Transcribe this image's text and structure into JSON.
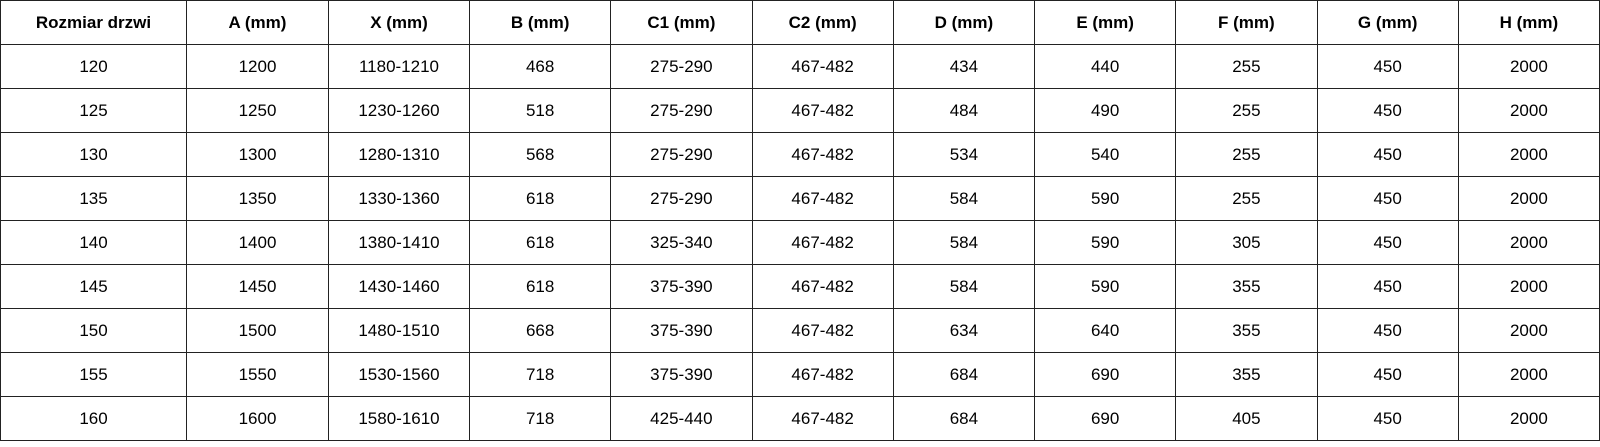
{
  "table": {
    "headers": [
      "Rozmiar drzwi",
      "A (mm)",
      "X (mm)",
      "B (mm)",
      "C1 (mm)",
      "C2 (mm)",
      "D (mm)",
      "E (mm)",
      "F (mm)",
      "G (mm)",
      "H (mm)"
    ],
    "rows": [
      [
        "120",
        "1200",
        "1180-1210",
        "468",
        "275-290",
        "467-482",
        "434",
        "440",
        "255",
        "450",
        "2000"
      ],
      [
        "125",
        "1250",
        "1230-1260",
        "518",
        "275-290",
        "467-482",
        "484",
        "490",
        "255",
        "450",
        "2000"
      ],
      [
        "130",
        "1300",
        "1280-1310",
        "568",
        "275-290",
        "467-482",
        "534",
        "540",
        "255",
        "450",
        "2000"
      ],
      [
        "135",
        "1350",
        "1330-1360",
        "618",
        "275-290",
        "467-482",
        "584",
        "590",
        "255",
        "450",
        "2000"
      ],
      [
        "140",
        "1400",
        "1380-1410",
        "618",
        "325-340",
        "467-482",
        "584",
        "590",
        "305",
        "450",
        "2000"
      ],
      [
        "145",
        "1450",
        "1430-1460",
        "618",
        "375-390",
        "467-482",
        "584",
        "590",
        "355",
        "450",
        "2000"
      ],
      [
        "150",
        "1500",
        "1480-1510",
        "668",
        "375-390",
        "467-482",
        "634",
        "640",
        "355",
        "450",
        "2000"
      ],
      [
        "155",
        "1550",
        "1530-1560",
        "718",
        "375-390",
        "467-482",
        "684",
        "690",
        "355",
        "450",
        "2000"
      ],
      [
        "160",
        "1600",
        "1580-1610",
        "718",
        "425-440",
        "467-482",
        "684",
        "690",
        "405",
        "450",
        "2000"
      ]
    ]
  }
}
